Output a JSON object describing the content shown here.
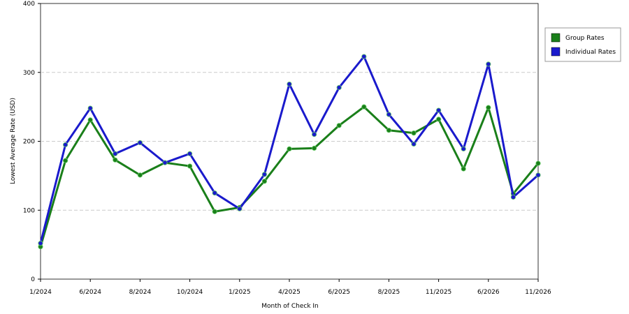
{
  "chart_data": {
    "type": "line",
    "x_label": "Month of Check In",
    "y_label": "Lowest Average Rate (USD)",
    "categories": [
      "1/2024",
      null,
      "6/2024",
      null,
      "8/2024",
      null,
      "10/2024",
      null,
      "1/2025",
      null,
      "4/2025",
      null,
      "6/2025",
      null,
      "8/2025",
      null,
      "11/2025",
      null,
      "6/2026",
      null,
      "11/2026"
    ],
    "series": [
      {
        "name": "Group Rates",
        "color": "#1a7f1a",
        "values": [
          47,
          172,
          231,
          173,
          151,
          169,
          164,
          98,
          104,
          142,
          189,
          190,
          223,
          250,
          216,
          212,
          232,
          160,
          249,
          124,
          168
        ]
      },
      {
        "name": "Individual Rates",
        "color": "#1a1acc",
        "values": [
          52,
          195,
          248,
          182,
          198,
          169,
          182,
          125,
          102,
          152,
          283,
          210,
          278,
          323,
          239,
          196,
          245,
          189,
          312,
          119,
          151
        ]
      }
    ],
    "ylim": [
      0,
      400
    ],
    "yticks": [
      0,
      100,
      200,
      300,
      400
    ],
    "grid": true,
    "legend": "right"
  }
}
